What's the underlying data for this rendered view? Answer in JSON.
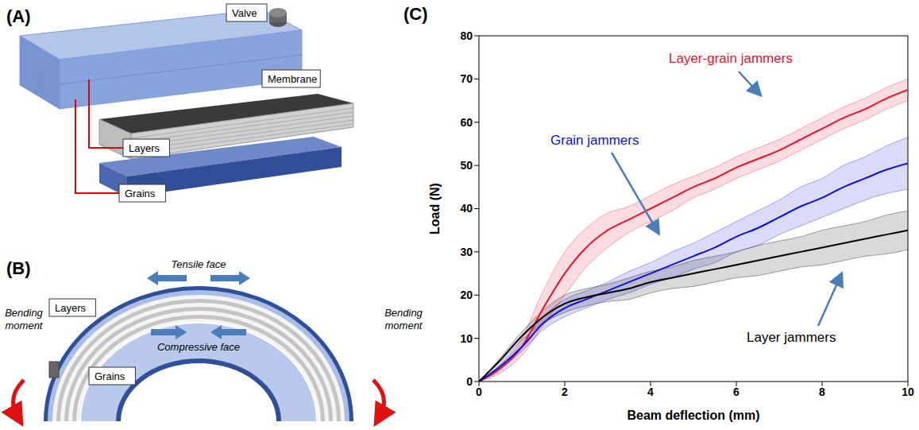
{
  "panels": [
    {
      "label": "(A)",
      "valve": "Valve",
      "membrane": "Membrane",
      "layers": "Layers",
      "grains": "Grains"
    },
    {
      "label": "(B)",
      "tensile": "Tensile face",
      "compressive": "Compressive face",
      "layers": "Layers",
      "grains": "Grains",
      "moments": [
        "Bending moment",
        "Bending moment"
      ]
    }
  ],
  "chart_data": {
    "type": "line",
    "label": "(C)",
    "xlabel": "Beam deflection (mm)",
    "ylabel": "Load (N)",
    "x": [
      0,
      0.5,
      1,
      1.5,
      2,
      2.5,
      3,
      3.5,
      4,
      4.5,
      5,
      5.5,
      6,
      6.5,
      7,
      7.5,
      8,
      8.5,
      9,
      9.5,
      10
    ],
    "xlim": [
      0,
      10
    ],
    "xticks": [
      0,
      2,
      4,
      6,
      8,
      10
    ],
    "ylim": [
      0,
      80
    ],
    "yticks": [
      0,
      10,
      20,
      30,
      40,
      50,
      60,
      70,
      80
    ],
    "grid": false,
    "series": [
      {
        "name": "Layer-grain jammers",
        "color": "#e8112d",
        "values": [
          0,
          3,
          8,
          17,
          25,
          31,
          35,
          37.5,
          40,
          42.5,
          45,
          47,
          49.5,
          51.5,
          53.5,
          56,
          58.5,
          61,
          63,
          65.5,
          67.5
        ],
        "error": [
          0,
          1,
          2,
          4,
          5,
          4.5,
          4,
          3,
          3,
          3,
          2.5,
          2.5,
          2.5,
          2.5,
          2.5,
          2.5,
          2.5,
          2.5,
          2.5,
          2.5,
          2.5
        ]
      },
      {
        "name": "Grain jammers",
        "color": "#1010d8",
        "values": [
          0,
          3.5,
          8,
          13.5,
          17,
          19,
          21,
          23,
          25,
          27,
          29,
          31,
          33.5,
          35.5,
          38,
          40.5,
          42.5,
          45,
          47,
          49,
          50.5
        ],
        "error": [
          0,
          0.5,
          1,
          1.5,
          2,
          2,
          2,
          2.5,
          2.5,
          3,
          3,
          3.5,
          3.5,
          4,
          4,
          4.5,
          4.5,
          5,
          5,
          5.5,
          6
        ]
      },
      {
        "name": "Layer jammers",
        "color": "#000000",
        "values": [
          0,
          5,
          10.5,
          15,
          18,
          19.5,
          20.5,
          21.5,
          23,
          24,
          25,
          26,
          27,
          28,
          29,
          30,
          31,
          32,
          33,
          34,
          35
        ],
        "error": [
          0,
          0.5,
          1,
          1.5,
          2,
          2,
          2,
          2.5,
          2.5,
          2.5,
          3,
          3,
          3,
          3.5,
          3.5,
          3.5,
          4,
          4,
          4,
          4.5,
          4.5
        ]
      }
    ]
  }
}
